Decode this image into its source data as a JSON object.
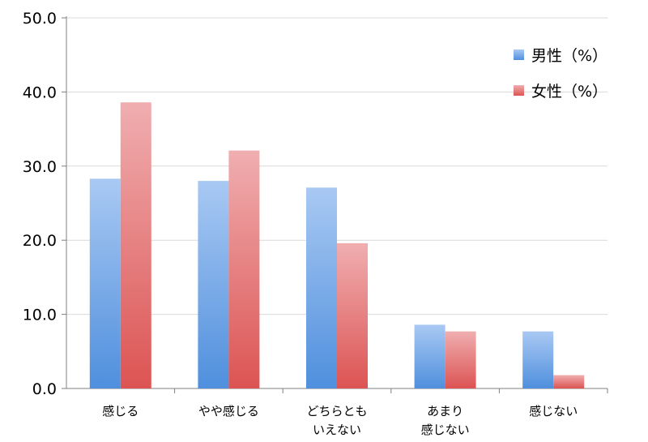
{
  "chart_data": {
    "type": "bar",
    "categories": [
      [
        "感じる"
      ],
      [
        "やや感じる"
      ],
      [
        "どちらとも",
        "いえない"
      ],
      [
        "あまり",
        "感じない"
      ],
      [
        "感じない"
      ]
    ],
    "series": [
      {
        "name": "男性（%）",
        "values": [
          28.3,
          28.0,
          27.1,
          8.6,
          7.7
        ],
        "color_top": "#a9c9f3",
        "color_bottom": "#4f8fdd"
      },
      {
        "name": "女性（%）",
        "values": [
          38.6,
          32.1,
          19.6,
          7.7,
          1.8
        ],
        "color_top": "#f0aeb0",
        "color_bottom": "#dc5453"
      }
    ],
    "ylim": [
      0,
      50
    ],
    "yticks": [
      "0.0",
      "10.0",
      "20.0",
      "30.0",
      "40.0",
      "50.0"
    ],
    "grid": true,
    "legend_position": "top-right"
  }
}
